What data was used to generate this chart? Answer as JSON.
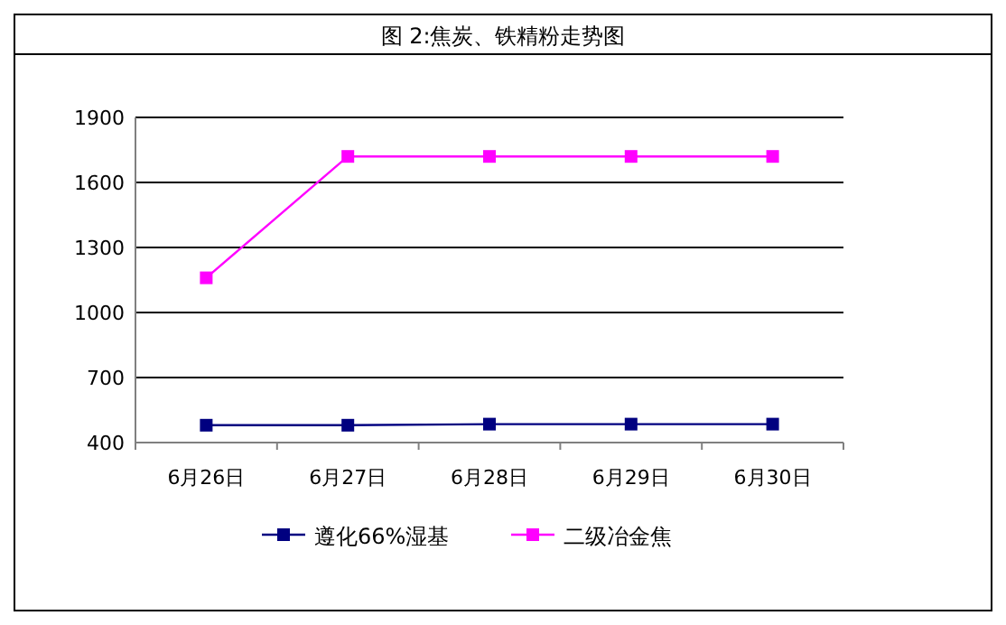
{
  "chart_data": {
    "type": "line",
    "title": "图 2:焦炭、铁精粉走势图",
    "categories": [
      "6月26日",
      "6月27日",
      "6月28日",
      "6月29日",
      "6月30日"
    ],
    "series": [
      {
        "name": "遵化66%湿基",
        "color": "#000080",
        "values": [
          480,
          480,
          485,
          485,
          485
        ]
      },
      {
        "name": "二级冶金焦",
        "color": "#ff00ff",
        "values": [
          1160,
          1720,
          1720,
          1720,
          1720
        ]
      }
    ],
    "ylim": [
      400,
      1900
    ],
    "yticks": [
      400,
      700,
      1000,
      1300,
      1600,
      1900
    ],
    "grid": "y",
    "legend": "bottom",
    "marker": "square"
  }
}
